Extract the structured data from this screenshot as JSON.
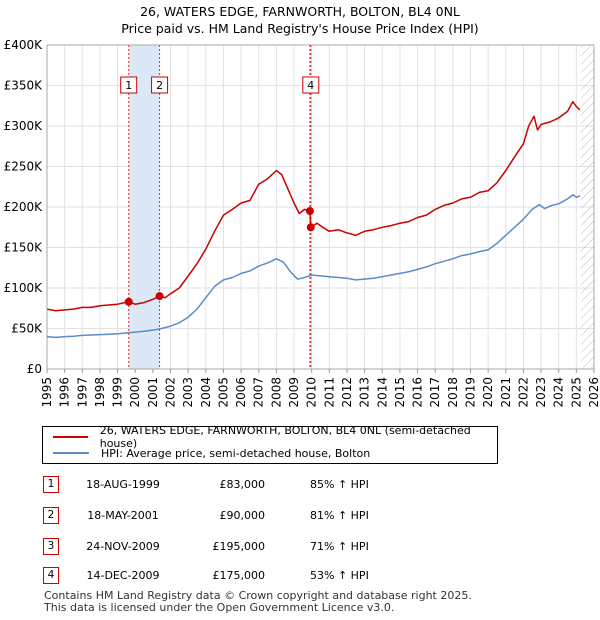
{
  "title_line1": "26, WATERS EDGE, FARNWORTH, BOLTON, BL4 0NL",
  "title_line2": "Price paid vs. HM Land Registry's House Price Index (HPI)",
  "chart_data": {
    "type": "line",
    "title": "26, WATERS EDGE, FARNWORTH, BOLTON, BL4 0NL - Price paid vs. HM Land Registry's House Price Index (HPI)",
    "xlim": [
      1995,
      2026
    ],
    "ylim": [
      0,
      400000
    ],
    "ytick_values": [
      0,
      50000,
      100000,
      150000,
      200000,
      250000,
      300000,
      350000,
      400000
    ],
    "ytick_labels": [
      "£0",
      "£50K",
      "£100K",
      "£150K",
      "£200K",
      "£250K",
      "£300K",
      "£350K",
      "£400K"
    ],
    "xtick_values": [
      1995,
      1996,
      1997,
      1998,
      1999,
      2000,
      2001,
      2002,
      2003,
      2004,
      2005,
      2006,
      2007,
      2008,
      2009,
      2010,
      2011,
      2012,
      2013,
      2014,
      2015,
      2016,
      2017,
      2018,
      2019,
      2020,
      2021,
      2022,
      2023,
      2024,
      2025,
      2026
    ],
    "xtick_labels": [
      "1995",
      "1996",
      "1997",
      "1998",
      "1999",
      "2000",
      "2001",
      "2002",
      "2003",
      "2004",
      "2005",
      "2006",
      "2007",
      "2008",
      "2009",
      "2010",
      "2011",
      "2012",
      "2013",
      "2014",
      "2015",
      "2016",
      "2017",
      "2018",
      "2019",
      "2020",
      "2021",
      "2022",
      "2023",
      "2024",
      "2025",
      "2026"
    ],
    "grid": true,
    "legend_position": "below",
    "shaded_span": [
      1999.63,
      2001.38
    ],
    "future_hatch_from": 2025.25,
    "series": [
      {
        "name": "26, WATERS EDGE, FARNWORTH, BOLTON, BL4 0NL (semi-detached house)",
        "color": "#cc0000",
        "points": [
          [
            1995.0,
            74000
          ],
          [
            1995.5,
            72000
          ],
          [
            1996.0,
            73000
          ],
          [
            1996.5,
            74000
          ],
          [
            1997.0,
            76000
          ],
          [
            1997.5,
            76000
          ],
          [
            1998.0,
            78000
          ],
          [
            1998.5,
            79000
          ],
          [
            1999.0,
            80000
          ],
          [
            1999.63,
            83000
          ],
          [
            2000.0,
            80000
          ],
          [
            2000.5,
            82000
          ],
          [
            2001.0,
            86000
          ],
          [
            2001.38,
            90000
          ],
          [
            2001.7,
            88000
          ],
          [
            2002.0,
            93000
          ],
          [
            2002.5,
            100000
          ],
          [
            2003.0,
            115000
          ],
          [
            2003.5,
            130000
          ],
          [
            2004.0,
            148000
          ],
          [
            2004.5,
            170000
          ],
          [
            2005.0,
            190000
          ],
          [
            2005.5,
            197000
          ],
          [
            2006.0,
            205000
          ],
          [
            2006.5,
            208000
          ],
          [
            2007.0,
            228000
          ],
          [
            2007.5,
            235000
          ],
          [
            2008.0,
            245000
          ],
          [
            2008.3,
            240000
          ],
          [
            2008.7,
            220000
          ],
          [
            2009.0,
            205000
          ],
          [
            2009.3,
            192000
          ],
          [
            2009.6,
            197000
          ],
          [
            2009.9,
            195000
          ],
          [
            2009.95,
            175000
          ],
          [
            2010.3,
            180000
          ],
          [
            2010.7,
            174000
          ],
          [
            2011.0,
            170000
          ],
          [
            2011.5,
            172000
          ],
          [
            2012.0,
            168000
          ],
          [
            2012.5,
            165000
          ],
          [
            2013.0,
            170000
          ],
          [
            2013.5,
            172000
          ],
          [
            2014.0,
            175000
          ],
          [
            2014.5,
            177000
          ],
          [
            2015.0,
            180000
          ],
          [
            2015.5,
            182000
          ],
          [
            2016.0,
            187000
          ],
          [
            2016.5,
            190000
          ],
          [
            2017.0,
            197000
          ],
          [
            2017.5,
            202000
          ],
          [
            2018.0,
            205000
          ],
          [
            2018.5,
            210000
          ],
          [
            2019.0,
            212000
          ],
          [
            2019.5,
            218000
          ],
          [
            2020.0,
            220000
          ],
          [
            2020.5,
            230000
          ],
          [
            2021.0,
            245000
          ],
          [
            2021.5,
            262000
          ],
          [
            2022.0,
            278000
          ],
          [
            2022.3,
            300000
          ],
          [
            2022.6,
            312000
          ],
          [
            2022.8,
            295000
          ],
          [
            2023.0,
            302000
          ],
          [
            2023.5,
            305000
          ],
          [
            2024.0,
            310000
          ],
          [
            2024.5,
            318000
          ],
          [
            2024.8,
            330000
          ],
          [
            2025.0,
            324000
          ],
          [
            2025.2,
            320000
          ]
        ]
      },
      {
        "name": "HPI: Average price, semi-detached house, Bolton",
        "color": "#5b8cc8",
        "points": [
          [
            1995.0,
            40000
          ],
          [
            1995.5,
            39000
          ],
          [
            1996.0,
            40000
          ],
          [
            1996.5,
            40500
          ],
          [
            1997.0,
            41500
          ],
          [
            1997.5,
            42000
          ],
          [
            1998.0,
            42500
          ],
          [
            1998.5,
            43000
          ],
          [
            1999.0,
            43500
          ],
          [
            1999.5,
            44500
          ],
          [
            2000.0,
            45500
          ],
          [
            2000.5,
            46500
          ],
          [
            2001.0,
            48000
          ],
          [
            2001.5,
            50000
          ],
          [
            2002.0,
            53000
          ],
          [
            2002.5,
            57000
          ],
          [
            2003.0,
            64000
          ],
          [
            2003.5,
            74000
          ],
          [
            2004.0,
            88000
          ],
          [
            2004.5,
            102000
          ],
          [
            2005.0,
            110000
          ],
          [
            2005.5,
            113000
          ],
          [
            2006.0,
            118000
          ],
          [
            2006.5,
            121000
          ],
          [
            2007.0,
            127000
          ],
          [
            2007.5,
            131000
          ],
          [
            2008.0,
            136000
          ],
          [
            2008.4,
            132000
          ],
          [
            2008.8,
            120000
          ],
          [
            2009.2,
            111000
          ],
          [
            2009.6,
            113000
          ],
          [
            2010.0,
            116000
          ],
          [
            2010.5,
            115000
          ],
          [
            2011.0,
            114000
          ],
          [
            2011.5,
            113000
          ],
          [
            2012.0,
            112000
          ],
          [
            2012.5,
            110000
          ],
          [
            2013.0,
            111000
          ],
          [
            2013.5,
            112000
          ],
          [
            2014.0,
            114000
          ],
          [
            2014.5,
            116000
          ],
          [
            2015.0,
            118000
          ],
          [
            2015.5,
            120000
          ],
          [
            2016.0,
            123000
          ],
          [
            2016.5,
            126000
          ],
          [
            2017.0,
            130000
          ],
          [
            2017.5,
            133000
          ],
          [
            2018.0,
            136000
          ],
          [
            2018.5,
            140000
          ],
          [
            2019.0,
            142000
          ],
          [
            2019.5,
            145000
          ],
          [
            2020.0,
            147000
          ],
          [
            2020.5,
            155000
          ],
          [
            2021.0,
            165000
          ],
          [
            2021.5,
            175000
          ],
          [
            2022.0,
            185000
          ],
          [
            2022.5,
            197000
          ],
          [
            2022.9,
            203000
          ],
          [
            2023.2,
            198000
          ],
          [
            2023.6,
            202000
          ],
          [
            2024.0,
            204000
          ],
          [
            2024.5,
            210000
          ],
          [
            2024.8,
            215000
          ],
          [
            2025.0,
            212000
          ],
          [
            2025.2,
            214000
          ]
        ]
      }
    ],
    "markers": [
      {
        "id": "1",
        "x": 1999.63,
        "y": 83000
      },
      {
        "id": "2",
        "x": 2001.38,
        "y": 90000
      },
      {
        "id": "3",
        "x": 2009.9,
        "y": 195000
      },
      {
        "id": "4",
        "x": 2009.95,
        "y": 175000
      }
    ],
    "top_labels": [
      {
        "id": "1",
        "x": 1999.63
      },
      {
        "id": "2",
        "x": 2001.38
      },
      {
        "id": "4",
        "x": 2009.95
      }
    ]
  },
  "legend": {
    "property_label": "26, WATERS EDGE, FARNWORTH, BOLTON, BL4 0NL (semi-detached house)",
    "hpi_label": "HPI: Average price, semi-detached house, Bolton",
    "property_color": "#cc0000",
    "hpi_color": "#5b8cc8"
  },
  "transactions": [
    {
      "id": "1",
      "date": "18-AUG-1999",
      "price": "£83,000",
      "hpi": "85% ↑ HPI"
    },
    {
      "id": "2",
      "date": "18-MAY-2001",
      "price": "£90,000",
      "hpi": "81% ↑ HPI"
    },
    {
      "id": "3",
      "date": "24-NOV-2009",
      "price": "£195,000",
      "hpi": "71% ↑ HPI"
    },
    {
      "id": "4",
      "date": "14-DEC-2009",
      "price": "£175,000",
      "hpi": "53% ↑ HPI"
    }
  ],
  "footer": {
    "line1": "Contains HM Land Registry data © Crown copyright and database right 2025.",
    "line2": "This data is licensed under the Open Government Licence v3.0."
  }
}
